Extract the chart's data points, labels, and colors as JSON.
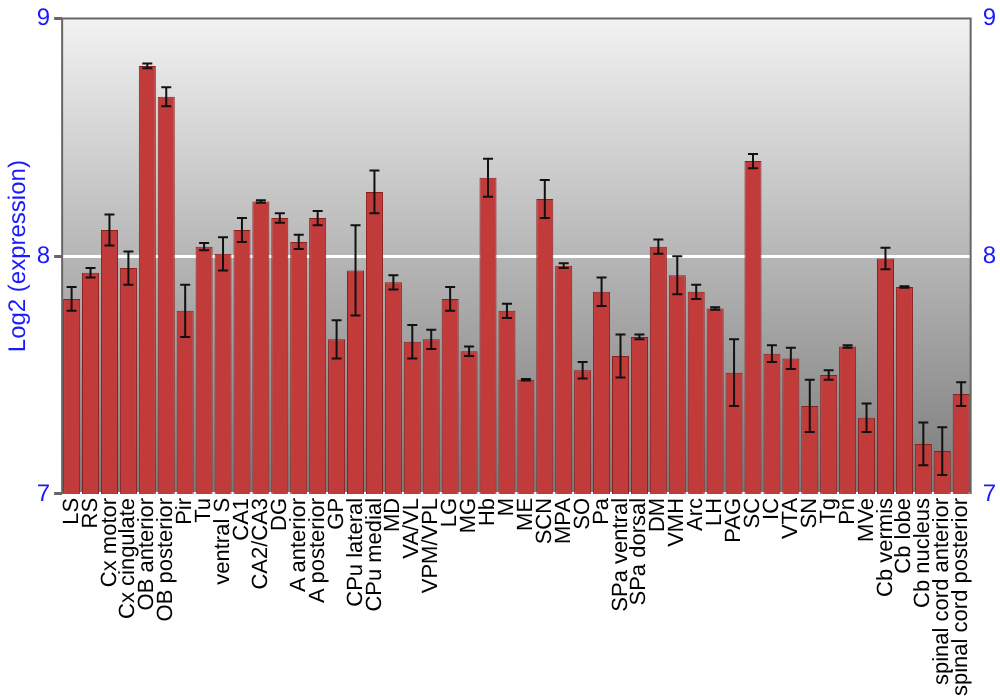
{
  "chart_data": {
    "type": "bar",
    "ylabel": "Log2 (expression)",
    "categories": [
      "LS",
      "RS",
      "Cx motor",
      "Cx cingulate",
      "OB anterior",
      "OB posterior",
      "Pir",
      "Tu",
      "ventral S",
      "CA1",
      "CA2/CA3",
      "DG",
      "A anterior",
      "A posterior",
      "GP",
      "CPu lateral",
      "CPu medial",
      "MD",
      "VA/VL",
      "VPM/VPL",
      "LG",
      "MG",
      "Hb",
      "M",
      "ME",
      "SCN",
      "MPA",
      "SO",
      "Pa",
      "SPa ventral",
      "SPa dorsal",
      "DM",
      "VMH",
      "Arc",
      "LH",
      "PAG",
      "SC",
      "IC",
      "VTA",
      "SN",
      "Tg",
      "Pn",
      "MVe",
      "Cb vermis",
      "Cb lobe",
      "Cb nucleus",
      "spinal cord anterior",
      "spinal cord posterior"
    ],
    "values": [
      7.82,
      7.93,
      8.11,
      7.95,
      8.8,
      8.67,
      7.77,
      8.04,
      8.01,
      8.11,
      8.23,
      8.16,
      8.06,
      8.16,
      7.65,
      7.94,
      8.27,
      7.89,
      7.64,
      7.65,
      7.82,
      7.6,
      8.33,
      7.77,
      7.48,
      8.24,
      7.96,
      7.52,
      7.85,
      7.58,
      7.66,
      8.04,
      7.92,
      7.85,
      7.78,
      7.51,
      8.4,
      7.59,
      7.57,
      7.37,
      7.5,
      7.62,
      7.32,
      7.99,
      7.87,
      7.21,
      7.18,
      7.42
    ],
    "errors": [
      0.05,
      0.02,
      0.065,
      0.07,
      0.01,
      0.04,
      0.11,
      0.015,
      0.07,
      0.05,
      0.005,
      0.02,
      0.03,
      0.03,
      0.08,
      0.19,
      0.09,
      0.03,
      0.07,
      0.04,
      0.05,
      0.02,
      0.08,
      0.03,
      0.003,
      0.08,
      0.01,
      0.035,
      0.06,
      0.09,
      0.01,
      0.03,
      0.08,
      0.03,
      0.005,
      0.14,
      0.03,
      0.035,
      0.045,
      0.11,
      0.02,
      0.005,
      0.06,
      0.045,
      0.003,
      0.09,
      0.1,
      0.05
    ],
    "color": "#c23b3b",
    "ylim": [
      7,
      9
    ],
    "yticks": [
      7,
      8,
      9
    ],
    "y2lim": [
      7,
      9
    ],
    "y2ticks": [
      7,
      8,
      9
    ],
    "grid": "y",
    "legend": false
  }
}
